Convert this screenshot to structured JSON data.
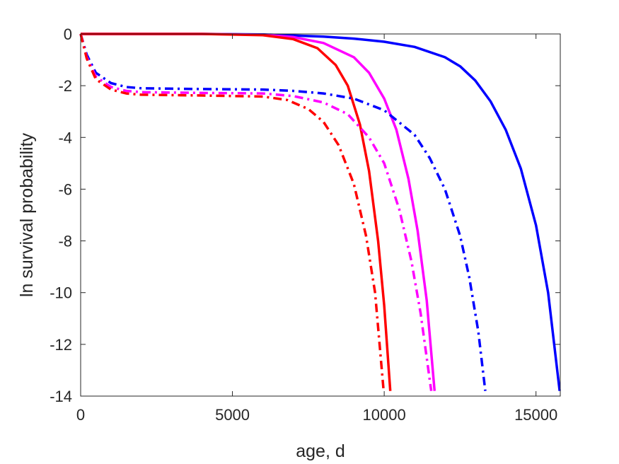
{
  "chart_data": {
    "type": "line",
    "title": "",
    "xlabel": "age, d",
    "ylabel": "ln survival probability",
    "xlim": [
      0,
      15800
    ],
    "ylim": [
      -14,
      0
    ],
    "xticks": [
      0,
      5000,
      10000,
      15000
    ],
    "xtick_labels": [
      "0",
      "5000",
      "10000",
      "15000"
    ],
    "yticks": [
      0,
      -2,
      -4,
      -6,
      -8,
      -10,
      -12,
      -14
    ],
    "ytick_labels": [
      "0",
      "-2",
      "-4",
      "-6",
      "-8",
      "-10",
      "-12",
      "-14"
    ],
    "grid": false,
    "legend": "none",
    "series": [
      {
        "color": "#0000ff",
        "dash": "solid",
        "x": [
          0,
          2000,
          4000,
          6000,
          8000,
          9000,
          10000,
          11000,
          12000,
          12500,
          13000,
          13500,
          14000,
          14500,
          15000,
          15400,
          15780
        ],
        "y": [
          0,
          0,
          0,
          -0.02,
          -0.1,
          -0.18,
          -0.3,
          -0.5,
          -0.9,
          -1.25,
          -1.8,
          -2.6,
          -3.7,
          -5.2,
          -7.4,
          -10.0,
          -13.8
        ]
      },
      {
        "color": "#ff00ff",
        "dash": "solid",
        "x": [
          0,
          2000,
          4000,
          6000,
          7000,
          8000,
          9000,
          9500,
          10000,
          10400,
          10800,
          11100,
          11400,
          11660
        ],
        "y": [
          0,
          0,
          0,
          -0.03,
          -0.12,
          -0.35,
          -0.9,
          -1.5,
          -2.5,
          -3.7,
          -5.6,
          -7.6,
          -10.3,
          -13.8
        ]
      },
      {
        "color": "#ff0000",
        "dash": "solid",
        "x": [
          0,
          2000,
          4000,
          6000,
          7000,
          7800,
          8400,
          8800,
          9200,
          9500,
          9800,
          10000,
          10200
        ],
        "y": [
          0,
          0,
          0,
          -0.05,
          -0.2,
          -0.55,
          -1.2,
          -2.0,
          -3.5,
          -5.3,
          -8.0,
          -10.5,
          -13.8
        ]
      },
      {
        "color": "#0000ff",
        "dash": "dashdot",
        "x": [
          0,
          200,
          500,
          1000,
          1500,
          2000,
          4000,
          6000,
          7000,
          8000,
          9000,
          10000,
          11000,
          11500,
          12000,
          12500,
          12800,
          13100,
          13330
        ],
        "y": [
          0,
          -0.8,
          -1.5,
          -1.9,
          -2.05,
          -2.1,
          -2.13,
          -2.15,
          -2.2,
          -2.3,
          -2.5,
          -2.95,
          -3.9,
          -4.8,
          -6.0,
          -7.8,
          -9.4,
          -11.5,
          -13.8
        ]
      },
      {
        "color": "#ff00ff",
        "dash": "dashdot",
        "x": [
          0,
          200,
          500,
          1000,
          1500,
          2000,
          4000,
          6000,
          7000,
          8000,
          8800,
          9500,
          10000,
          10500,
          10900,
          11200,
          11550
        ],
        "y": [
          0,
          -0.9,
          -1.65,
          -2.05,
          -2.2,
          -2.25,
          -2.28,
          -2.3,
          -2.4,
          -2.65,
          -3.1,
          -4.0,
          -5.0,
          -6.8,
          -8.8,
          -10.8,
          -13.8
        ]
      },
      {
        "color": "#ff0000",
        "dash": "dashdot",
        "x": [
          0,
          200,
          500,
          1000,
          1500,
          2000,
          4000,
          6000,
          6800,
          7500,
          8000,
          8500,
          9000,
          9400,
          9700,
          9980
        ],
        "y": [
          0,
          -0.95,
          -1.75,
          -2.15,
          -2.3,
          -2.35,
          -2.38,
          -2.42,
          -2.55,
          -2.9,
          -3.4,
          -4.3,
          -5.8,
          -7.8,
          -10.0,
          -13.8
        ]
      }
    ]
  }
}
